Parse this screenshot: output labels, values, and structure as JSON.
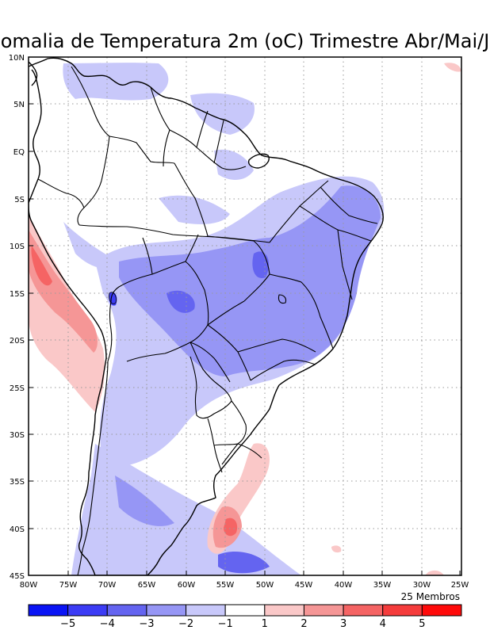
{
  "title": "omalia de Temperatura 2m (oC) Trimestre Abr/Mai/J",
  "members_label": "25 Membros",
  "lat_labels": [
    "10N",
    "5N",
    "EQ",
    "5S",
    "10S",
    "15S",
    "20S",
    "25S",
    "30S",
    "35S",
    "40S",
    "45S"
  ],
  "lon_labels": [
    "80W",
    "75W",
    "70W",
    "65W",
    "60W",
    "55W",
    "50W",
    "45W",
    "40W",
    "35W",
    "30W",
    "25W"
  ],
  "colorbar": {
    "colors": [
      "#0a14f5",
      "#3c3cf5",
      "#6464f0",
      "#9696f5",
      "#c8c8fa",
      "#ffffff",
      "#fac8c8",
      "#f59696",
      "#f56464",
      "#f53c3c",
      "#ff0a0a"
    ],
    "labels": [
      "-5",
      "-4",
      "-3",
      "-2",
      "-1",
      "1",
      "2",
      "3",
      "4",
      "5"
    ]
  }
}
